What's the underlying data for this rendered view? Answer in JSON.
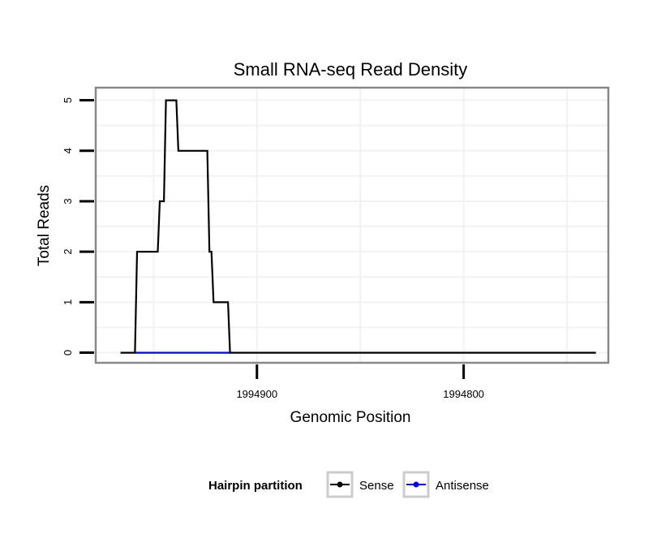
{
  "chart_data": {
    "type": "line",
    "title": "Small RNA-seq Read Density",
    "xlabel": "Genomic Position",
    "ylabel": "Total Reads",
    "xlim": [
      1994978,
      1994730
    ],
    "ylim": [
      -0.2,
      5.25
    ],
    "x_reversed": true,
    "x_ticks": [
      1994900,
      1994800
    ],
    "x_tick_labels": [
      "1994900",
      "1994800"
    ],
    "y_ticks": [
      0,
      1,
      2,
      3,
      4,
      5
    ],
    "y_tick_labels": [
      "0",
      "1",
      "2",
      "3",
      "4",
      "5"
    ],
    "grid": true,
    "legend": {
      "title": "Hairpin partition",
      "position": "bottom"
    },
    "series": [
      {
        "name": "Sense",
        "color": "#000000",
        "x": [
          1994966,
          1994959,
          1994958,
          1994948,
          1994947,
          1994945,
          1994944,
          1994939,
          1994938,
          1994924,
          1994923,
          1994922,
          1994921,
          1994914,
          1994913,
          1994736
        ],
        "y": [
          0,
          0,
          2,
          2,
          3,
          3,
          5,
          5,
          4,
          4,
          2,
          2,
          1,
          1,
          0,
          0
        ]
      },
      {
        "name": "Antisense",
        "color": "#0000ff",
        "x": [
          1994959,
          1994913
        ],
        "y": [
          0,
          0
        ]
      }
    ]
  }
}
